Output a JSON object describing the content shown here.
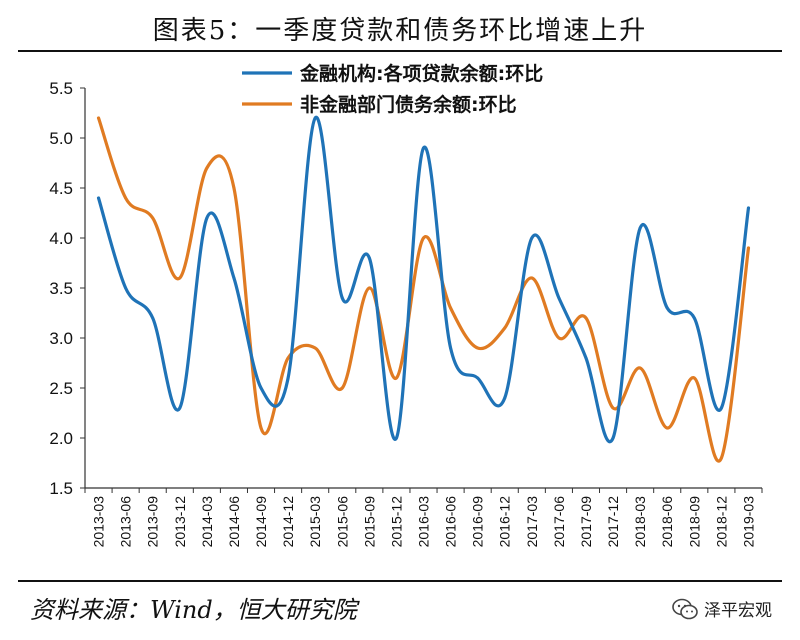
{
  "title": "图表5：一季度贷款和债务环比增速上升",
  "source": "资料来源：Wind，恒大研究院",
  "watermark": "泽平宏观",
  "colors": {
    "series1": "#1f73b7",
    "series2": "#e07b22",
    "axis": "#333333"
  },
  "chart_data": {
    "type": "line",
    "title": "图表5：一季度贷款和债务环比增速上升",
    "xlabel": "",
    "ylabel": "",
    "ylim": [
      1.5,
      5.5
    ],
    "yticks": [
      "1.5",
      "2.0",
      "2.5",
      "3.0",
      "3.5",
      "4.0",
      "4.5",
      "5.0",
      "5.5"
    ],
    "grid": false,
    "legend_position": "top-center",
    "categories": [
      "2013-03",
      "2013-06",
      "2013-09",
      "2013-12",
      "2014-03",
      "2014-06",
      "2014-09",
      "2014-12",
      "2015-03",
      "2015-06",
      "2015-09",
      "2015-12",
      "2016-03",
      "2016-06",
      "2016-09",
      "2016-12",
      "2017-03",
      "2017-06",
      "2017-09",
      "2017-12",
      "2018-03",
      "2018-06",
      "2018-09",
      "2018-12",
      "2019-03"
    ],
    "series": [
      {
        "name": "金融机构:各项贷款余额:环比",
        "values": [
          4.4,
          3.5,
          3.2,
          2.3,
          4.2,
          3.6,
          2.5,
          2.6,
          5.2,
          3.4,
          3.8,
          2.0,
          4.9,
          2.9,
          2.6,
          2.4,
          4.0,
          3.4,
          2.8,
          2.0,
          4.1,
          3.3,
          3.2,
          2.3,
          4.3
        ]
      },
      {
        "name": "非金融部门债务余额:环比",
        "values": [
          5.2,
          4.4,
          4.2,
          3.6,
          4.7,
          4.5,
          2.1,
          2.8,
          2.9,
          2.5,
          3.5,
          2.6,
          4.0,
          3.3,
          2.9,
          3.1,
          3.6,
          3.0,
          3.2,
          2.3,
          2.7,
          2.1,
          2.6,
          1.8,
          3.9
        ]
      }
    ]
  }
}
